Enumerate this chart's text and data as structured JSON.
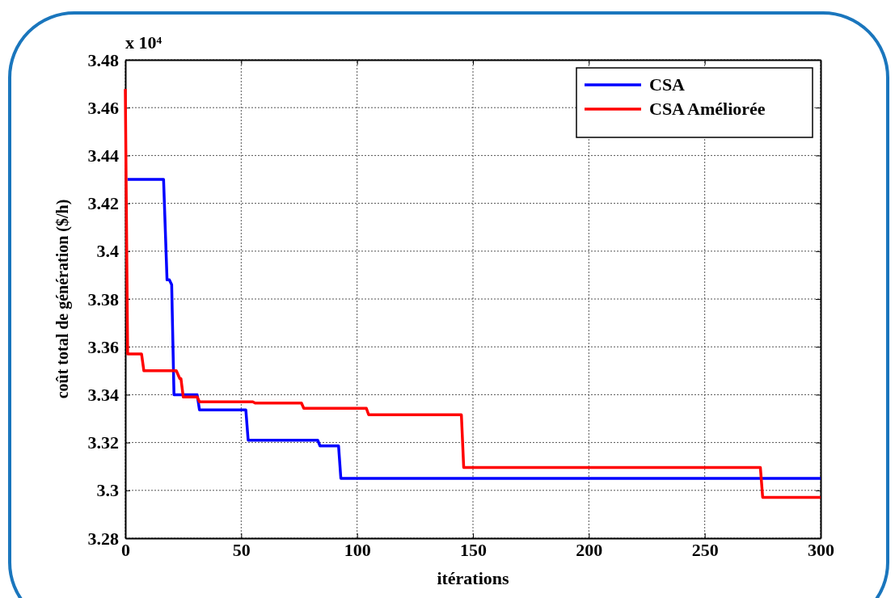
{
  "chart_data": {
    "type": "line",
    "xlabel": "itérations",
    "ylabel": "coût total de génération  ($/h)",
    "annotations": [
      "x 10⁴"
    ],
    "xlim": [
      0,
      300
    ],
    "xticks": [
      0,
      50,
      100,
      150,
      200,
      250,
      300
    ],
    "ylim": [
      3.28,
      3.48
    ],
    "yticks": [
      3.28,
      3.3,
      3.32,
      3.34,
      3.36,
      3.38,
      3.4,
      3.42,
      3.44,
      3.46,
      3.48
    ],
    "grid": true,
    "legend": "top right",
    "line_style": "solid",
    "marker": "none",
    "series": [
      {
        "name": "CSA",
        "color": "#0000ff",
        "x": [
          1,
          16.5,
          18,
          19,
          20,
          21,
          31,
          32,
          52,
          53,
          83,
          84,
          92,
          93,
          300
        ],
        "values": [
          3.43,
          3.43,
          3.388,
          3.388,
          3.386,
          3.34,
          3.34,
          3.3336,
          3.3336,
          3.321,
          3.321,
          3.3186,
          3.3186,
          3.305,
          3.305
        ]
      },
      {
        "name": "CSA Améliorée",
        "color": "#ff0000",
        "x": [
          0,
          1,
          7,
          8,
          22,
          23.5,
          24,
          25,
          31,
          32,
          55,
          56,
          76,
          77,
          104,
          105,
          145,
          146,
          274,
          275,
          300
        ],
        "values": [
          3.4678,
          3.357,
          3.357,
          3.35,
          3.35,
          3.3467,
          3.3467,
          3.339,
          3.339,
          3.337,
          3.337,
          3.3365,
          3.3365,
          3.3343,
          3.3343,
          3.3316,
          3.3316,
          3.3096,
          3.3096,
          3.2971,
          3.2971
        ]
      }
    ]
  }
}
